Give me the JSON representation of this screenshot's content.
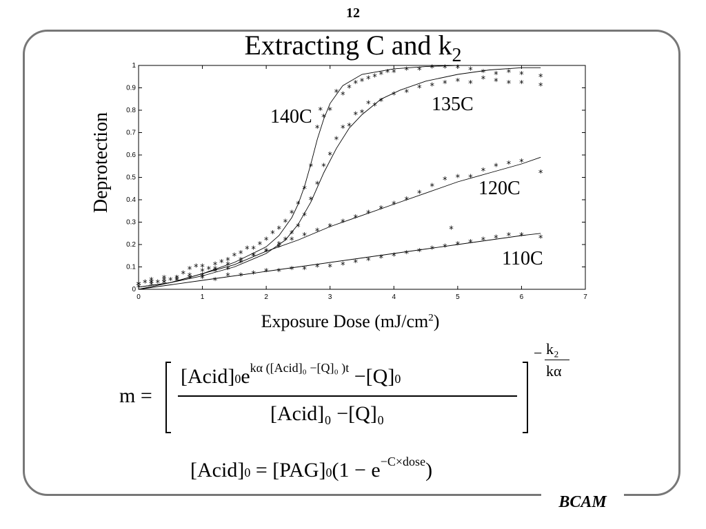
{
  "page": {
    "number": "12",
    "brand": "BCAM"
  },
  "slide": {
    "title_main": "Extracting C and k",
    "title_sub": "2"
  },
  "chart_data": {
    "type": "scatter",
    "xlabel": "Exposure Dose (mJ/cm2)",
    "xlabel_main": "Exposure Dose (mJ/cm",
    "xlabel_sup": "2",
    "xlabel_tail": ")",
    "ylabel": "Deprotection",
    "xlim": [
      0,
      7
    ],
    "ylim": [
      0,
      1
    ],
    "xticks": [
      0,
      1,
      2,
      3,
      4,
      5,
      6,
      7
    ],
    "yticks": [
      0,
      0.1,
      0.2,
      0.3,
      0.4,
      0.5,
      0.6,
      0.7,
      0.8,
      0.9,
      1
    ],
    "ytick_labels": [
      "0",
      "0.1",
      "0.2",
      "0.3",
      "0.4",
      "0.5",
      "0.6",
      "0.7",
      "0.8",
      "0.9",
      "1"
    ],
    "marker": "*",
    "series": [
      {
        "name": "140C",
        "points": [
          [
            0,
            0.02
          ],
          [
            0.1,
            0.03
          ],
          [
            0.2,
            0.04
          ],
          [
            0.3,
            0.03
          ],
          [
            0.4,
            0.05
          ],
          [
            0.5,
            0.04
          ],
          [
            0.6,
            0.05
          ],
          [
            0.7,
            0.07
          ],
          [
            0.8,
            0.09
          ],
          [
            0.9,
            0.1
          ],
          [
            1.0,
            0.1
          ],
          [
            1.1,
            0.09
          ],
          [
            1.2,
            0.11
          ],
          [
            1.3,
            0.12
          ],
          [
            1.4,
            0.13
          ],
          [
            1.5,
            0.15
          ],
          [
            1.6,
            0.16
          ],
          [
            1.7,
            0.18
          ],
          [
            1.8,
            0.18
          ],
          [
            1.9,
            0.2
          ],
          [
            2.0,
            0.22
          ],
          [
            2.1,
            0.25
          ],
          [
            2.2,
            0.27
          ],
          [
            2.3,
            0.3
          ],
          [
            2.4,
            0.34
          ],
          [
            2.5,
            0.38
          ],
          [
            2.6,
            0.45
          ],
          [
            2.7,
            0.55
          ],
          [
            2.8,
            0.72
          ],
          [
            2.85,
            0.8
          ],
          [
            2.9,
            0.77
          ],
          [
            3.0,
            0.8
          ],
          [
            3.1,
            0.88
          ],
          [
            3.2,
            0.87
          ],
          [
            3.3,
            0.9
          ],
          [
            3.4,
            0.92
          ],
          [
            3.5,
            0.93
          ],
          [
            3.6,
            0.94
          ],
          [
            3.7,
            0.95
          ],
          [
            3.8,
            0.96
          ],
          [
            3.9,
            0.97
          ],
          [
            4.0,
            0.97
          ],
          [
            4.2,
            0.98
          ],
          [
            4.4,
            0.98
          ],
          [
            4.6,
            0.99
          ],
          [
            4.8,
            0.99
          ],
          [
            5.0,
            0.99
          ],
          [
            5.2,
            0.98
          ],
          [
            5.4,
            0.97
          ],
          [
            5.6,
            0.96
          ],
          [
            5.8,
            0.97
          ],
          [
            6.0,
            0.96
          ],
          [
            6.3,
            0.95
          ]
        ],
        "fit": [
          [
            0,
            0.01
          ],
          [
            0.5,
            0.03
          ],
          [
            1.0,
            0.07
          ],
          [
            1.5,
            0.12
          ],
          [
            2.0,
            0.19
          ],
          [
            2.2,
            0.24
          ],
          [
            2.4,
            0.32
          ],
          [
            2.5,
            0.38
          ],
          [
            2.6,
            0.46
          ],
          [
            2.7,
            0.56
          ],
          [
            2.8,
            0.67
          ],
          [
            2.9,
            0.76
          ],
          [
            3.0,
            0.83
          ],
          [
            3.2,
            0.91
          ],
          [
            3.5,
            0.96
          ],
          [
            4.0,
            0.985
          ],
          [
            4.5,
            0.995
          ],
          [
            5.0,
            1.0
          ],
          [
            6.3,
            1.0
          ]
        ]
      },
      {
        "name": "135C",
        "points": [
          [
            0,
            0.01
          ],
          [
            0.2,
            0.02
          ],
          [
            0.4,
            0.03
          ],
          [
            0.6,
            0.04
          ],
          [
            0.8,
            0.06
          ],
          [
            1.0,
            0.08
          ],
          [
            1.2,
            0.09
          ],
          [
            1.4,
            0.11
          ],
          [
            1.6,
            0.13
          ],
          [
            1.8,
            0.15
          ],
          [
            2.0,
            0.17
          ],
          [
            2.2,
            0.2
          ],
          [
            2.3,
            0.22
          ],
          [
            2.4,
            0.25
          ],
          [
            2.5,
            0.28
          ],
          [
            2.6,
            0.33
          ],
          [
            2.7,
            0.4
          ],
          [
            2.8,
            0.47
          ],
          [
            2.9,
            0.55
          ],
          [
            3.0,
            0.6
          ],
          [
            3.1,
            0.67
          ],
          [
            3.2,
            0.72
          ],
          [
            3.3,
            0.73
          ],
          [
            3.4,
            0.78
          ],
          [
            3.5,
            0.79
          ],
          [
            3.6,
            0.83
          ],
          [
            3.7,
            0.82
          ],
          [
            3.8,
            0.84
          ],
          [
            4.0,
            0.87
          ],
          [
            4.2,
            0.88
          ],
          [
            4.4,
            0.9
          ],
          [
            4.6,
            0.91
          ],
          [
            4.8,
            0.92
          ],
          [
            5.0,
            0.93
          ],
          [
            5.2,
            0.92
          ],
          [
            5.4,
            0.94
          ],
          [
            5.6,
            0.93
          ],
          [
            5.8,
            0.92
          ],
          [
            6.0,
            0.92
          ],
          [
            6.3,
            0.91
          ]
        ],
        "fit": [
          [
            0,
            0.01
          ],
          [
            0.5,
            0.03
          ],
          [
            1.0,
            0.06
          ],
          [
            1.5,
            0.1
          ],
          [
            2.0,
            0.16
          ],
          [
            2.3,
            0.22
          ],
          [
            2.5,
            0.29
          ],
          [
            2.7,
            0.39
          ],
          [
            2.9,
            0.52
          ],
          [
            3.1,
            0.63
          ],
          [
            3.3,
            0.72
          ],
          [
            3.5,
            0.78
          ],
          [
            3.8,
            0.85
          ],
          [
            4.1,
            0.89
          ],
          [
            4.5,
            0.93
          ],
          [
            5.0,
            0.96
          ],
          [
            5.5,
            0.98
          ],
          [
            6.0,
            0.99
          ],
          [
            6.3,
            0.99
          ]
        ]
      },
      {
        "name": "120C",
        "points": [
          [
            0,
            0.02
          ],
          [
            0.2,
            0.03
          ],
          [
            0.4,
            0.04
          ],
          [
            0.6,
            0.05
          ],
          [
            0.8,
            0.05
          ],
          [
            1.0,
            0.06
          ],
          [
            1.2,
            0.08
          ],
          [
            1.4,
            0.09
          ],
          [
            1.6,
            0.12
          ],
          [
            1.8,
            0.15
          ],
          [
            2.0,
            0.17
          ],
          [
            2.2,
            0.19
          ],
          [
            2.4,
            0.22
          ],
          [
            2.6,
            0.24
          ],
          [
            2.8,
            0.26
          ],
          [
            3.0,
            0.28
          ],
          [
            3.2,
            0.3
          ],
          [
            3.4,
            0.32
          ],
          [
            3.6,
            0.34
          ],
          [
            3.8,
            0.36
          ],
          [
            4.0,
            0.38
          ],
          [
            4.2,
            0.4
          ],
          [
            4.4,
            0.43
          ],
          [
            4.6,
            0.46
          ],
          [
            4.8,
            0.49
          ],
          [
            5.0,
            0.5
          ],
          [
            5.2,
            0.5
          ],
          [
            5.4,
            0.53
          ],
          [
            5.6,
            0.55
          ],
          [
            5.8,
            0.56
          ],
          [
            6.0,
            0.57
          ],
          [
            6.3,
            0.52
          ]
        ],
        "fit": [
          [
            0,
            0.0
          ],
          [
            0.5,
            0.03
          ],
          [
            1.0,
            0.07
          ],
          [
            1.5,
            0.11
          ],
          [
            2.0,
            0.17
          ],
          [
            2.5,
            0.22
          ],
          [
            3.0,
            0.28
          ],
          [
            3.5,
            0.33
          ],
          [
            4.0,
            0.38
          ],
          [
            4.5,
            0.43
          ],
          [
            5.0,
            0.48
          ],
          [
            5.5,
            0.52
          ],
          [
            6.0,
            0.56
          ],
          [
            6.3,
            0.59
          ]
        ]
      },
      {
        "name": "110C",
        "points": [
          [
            0,
            0.02
          ],
          [
            0.2,
            0.03
          ],
          [
            0.4,
            0.03
          ],
          [
            0.6,
            0.04
          ],
          [
            0.8,
            0.05
          ],
          [
            1.0,
            0.05
          ],
          [
            1.2,
            0.04
          ],
          [
            1.4,
            0.06
          ],
          [
            1.6,
            0.06
          ],
          [
            1.8,
            0.07
          ],
          [
            2.0,
            0.08
          ],
          [
            2.2,
            0.08
          ],
          [
            2.4,
            0.09
          ],
          [
            2.6,
            0.09
          ],
          [
            2.8,
            0.1
          ],
          [
            3.0,
            0.1
          ],
          [
            3.2,
            0.11
          ],
          [
            3.4,
            0.12
          ],
          [
            3.6,
            0.13
          ],
          [
            3.8,
            0.14
          ],
          [
            4.0,
            0.15
          ],
          [
            4.2,
            0.16
          ],
          [
            4.4,
            0.17
          ],
          [
            4.6,
            0.18
          ],
          [
            4.8,
            0.19
          ],
          [
            4.9,
            0.27
          ],
          [
            5.0,
            0.2
          ],
          [
            5.2,
            0.21
          ],
          [
            5.4,
            0.22
          ],
          [
            5.6,
            0.23
          ],
          [
            5.8,
            0.24
          ],
          [
            6.0,
            0.24
          ],
          [
            6.3,
            0.23
          ]
        ],
        "fit": [
          [
            0,
            0.0
          ],
          [
            0.5,
            0.02
          ],
          [
            1.0,
            0.04
          ],
          [
            1.5,
            0.06
          ],
          [
            2.0,
            0.08
          ],
          [
            2.5,
            0.1
          ],
          [
            3.0,
            0.12
          ],
          [
            3.5,
            0.14
          ],
          [
            4.0,
            0.16
          ],
          [
            4.5,
            0.18
          ],
          [
            5.0,
            0.2
          ],
          [
            5.5,
            0.22
          ],
          [
            6.0,
            0.24
          ],
          [
            6.3,
            0.25
          ]
        ]
      }
    ]
  },
  "equation1": {
    "lhs": "m =",
    "acid": "Acid",
    "sub0": "0",
    "e": "e",
    "exponent": "kα ([Acid]₀ −[Q]₀ )t",
    "minus_q": "−[Q]",
    "denominator": "[Acid]₀ −[Q]₀",
    "power_sign": "−",
    "power_num": "k₂",
    "power_den": "kα"
  },
  "equation2": {
    "acid": "Acid",
    "sub0": "0",
    "eq": "=",
    "pag": "PAG",
    "one_minus": "1 − e",
    "exponent": "−C×dose"
  }
}
